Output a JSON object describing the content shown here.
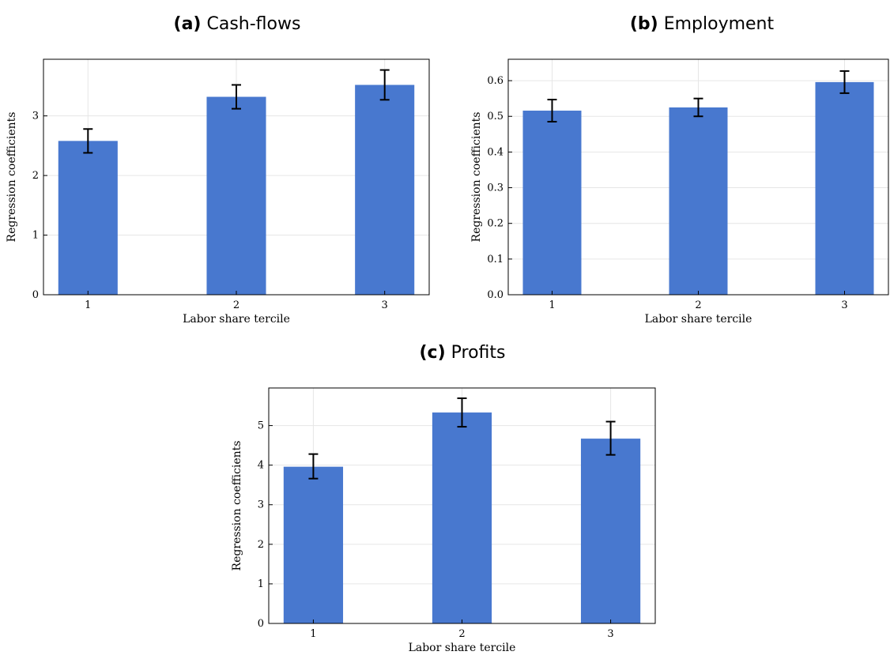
{
  "chart_data": [
    {
      "type": "bar",
      "panel_label": "(a)",
      "title": "Cash-flows",
      "xlabel": "Labor share tercile",
      "ylabel": "Regression coefficients",
      "categories": [
        "1",
        "2",
        "3"
      ],
      "values": [
        2.58,
        3.32,
        3.52
      ],
      "error_low": [
        2.38,
        3.12,
        3.27
      ],
      "error_high": [
        2.78,
        3.52,
        3.77
      ],
      "xlim": [
        0.7,
        3.3
      ],
      "ylim": [
        0,
        3.95
      ],
      "yticks": [
        0,
        1,
        2,
        3
      ],
      "ytick_labels": [
        "0",
        "1",
        "2",
        "3"
      ],
      "grid": true,
      "bar_color": "#4878cf"
    },
    {
      "type": "bar",
      "panel_label": "(b)",
      "title": "Employment",
      "xlabel": "Labor share tercile",
      "ylabel": "Regression coefficients",
      "categories": [
        "1",
        "2",
        "3"
      ],
      "values": [
        0.516,
        0.525,
        0.596
      ],
      "error_low": [
        0.485,
        0.5,
        0.565
      ],
      "error_high": [
        0.547,
        0.55,
        0.627
      ],
      "xlim": [
        0.7,
        3.3
      ],
      "ylim": [
        0,
        0.66
      ],
      "yticks": [
        0,
        0.1,
        0.2,
        0.3,
        0.4,
        0.5,
        0.6
      ],
      "ytick_labels": [
        "0.0",
        "0.1",
        "0.2",
        "0.3",
        "0.4",
        "0.5",
        "0.6"
      ],
      "grid": true,
      "bar_color": "#4878cf"
    },
    {
      "type": "bar",
      "panel_label": "(c)",
      "title": "Profits",
      "xlabel": "Labor share tercile",
      "ylabel": "Regression coefficients",
      "categories": [
        "1",
        "2",
        "3"
      ],
      "values": [
        3.96,
        5.33,
        4.67
      ],
      "error_low": [
        3.66,
        4.97,
        4.26
      ],
      "error_high": [
        4.28,
        5.69,
        5.1
      ],
      "xlim": [
        0.7,
        3.3
      ],
      "ylim": [
        0,
        5.95
      ],
      "yticks": [
        0,
        1,
        2,
        3,
        4,
        5
      ],
      "ytick_labels": [
        "0",
        "1",
        "2",
        "3",
        "4",
        "5"
      ],
      "grid": true,
      "bar_color": "#4878cf"
    }
  ]
}
